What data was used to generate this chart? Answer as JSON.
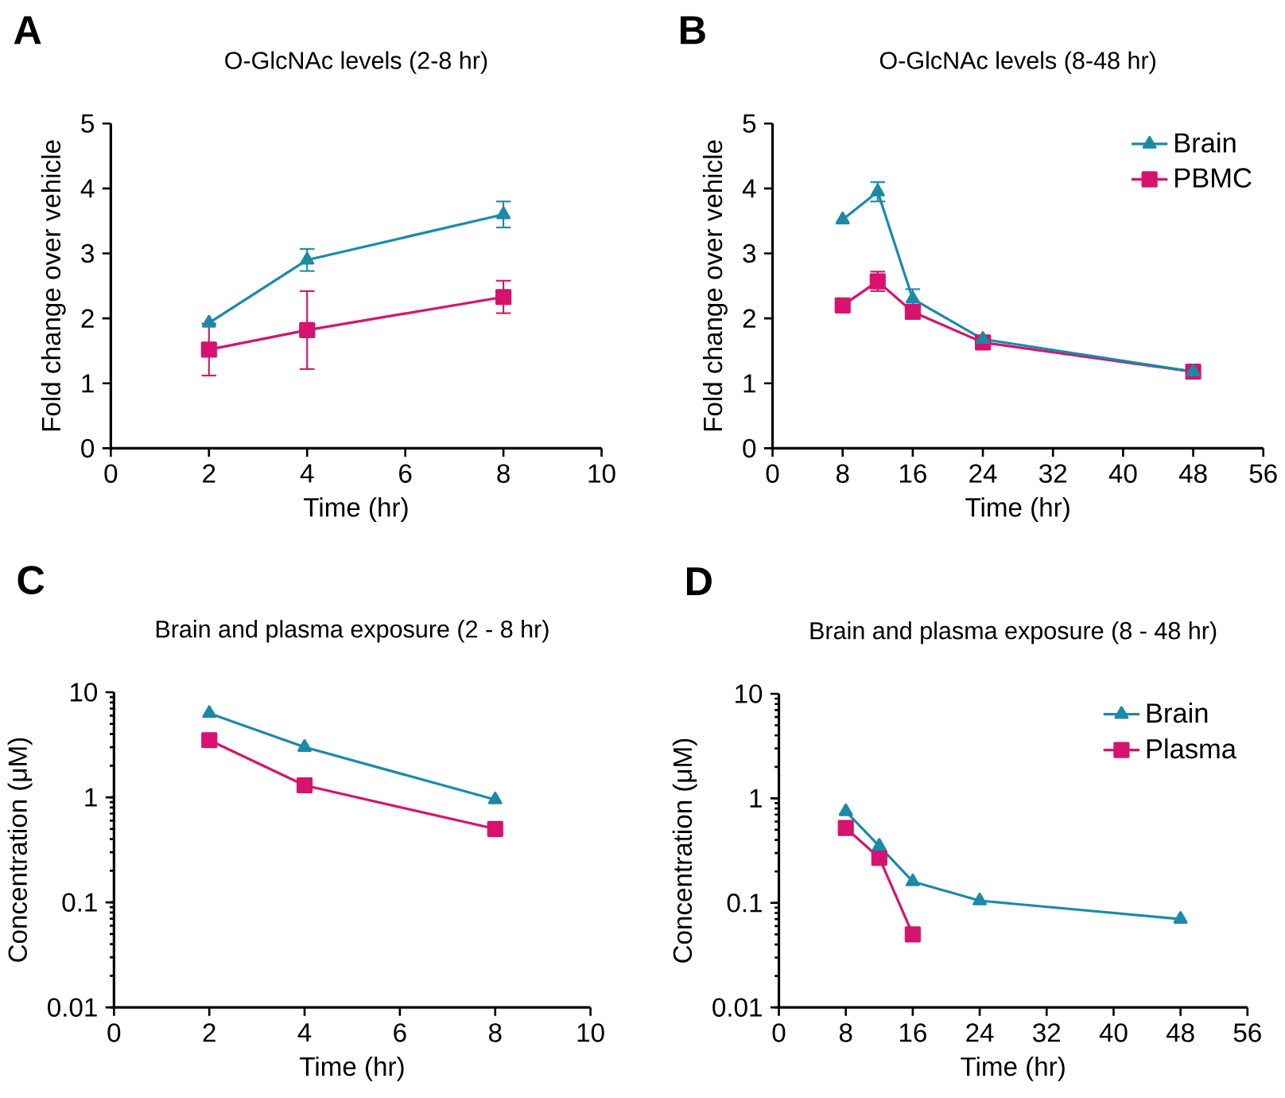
{
  "chart_data": [
    {
      "type": "line",
      "title": "O-GlcNAc levels (2-8 hr)",
      "xlabel": "Time (hr)",
      "ylabel": "Fold change over vehicle",
      "annotations": [
        "A"
      ],
      "x": [
        2,
        4,
        8
      ],
      "xlim": [
        0,
        10
      ],
      "xticks": [
        0,
        2,
        4,
        6,
        8,
        10
      ],
      "ylim": [
        0,
        5
      ],
      "yticks": [
        0,
        1,
        2,
        3,
        4,
        5
      ],
      "series": [
        {
          "color": "#1a8aa8",
          "marker": "triangle",
          "values": [
            1.93,
            2.9,
            3.6
          ],
          "errors": [
            null,
            0.17,
            0.2
          ]
        },
        {
          "color": "#d6136e",
          "marker": "square",
          "values": [
            1.52,
            1.82,
            2.33
          ],
          "errors": [
            0.4,
            0.6,
            0.25
          ]
        }
      ]
    },
    {
      "type": "line",
      "title": "O-GlcNAc levels (8-48 hr)",
      "xlabel": "Time (hr)",
      "ylabel": "Fold change over vehicle",
      "annotations": [
        "B"
      ],
      "x": [
        8,
        12,
        16,
        24,
        48
      ],
      "xlim": [
        0,
        56
      ],
      "xticks": [
        0,
        8,
        16,
        24,
        32,
        40,
        48,
        56
      ],
      "ylim": [
        0,
        5
      ],
      "yticks": [
        0,
        1,
        2,
        3,
        4,
        5
      ],
      "legend": "top right",
      "series": [
        {
          "name": "Brain",
          "color": "#1a8aa8",
          "marker": "triangle",
          "values": [
            3.52,
            3.95,
            2.3,
            1.68,
            1.18
          ],
          "errors": [
            null,
            0.15,
            0.15,
            null,
            null
          ]
        },
        {
          "name": "PBMC",
          "color": "#d6136e",
          "marker": "square",
          "values": [
            2.2,
            2.57,
            2.1,
            1.63,
            1.18
          ],
          "errors": [
            null,
            0.15,
            null,
            null,
            null
          ]
        }
      ]
    },
    {
      "type": "line",
      "title": "Brain and plasma exposure (2 - 8 hr)",
      "xlabel": "Time (hr)",
      "ylabel": "Concentration (μM)",
      "annotations": [
        "C"
      ],
      "log": "y",
      "x": [
        2,
        4,
        8
      ],
      "xlim": [
        0,
        10
      ],
      "xticks": [
        0,
        2,
        4,
        6,
        8,
        10
      ],
      "ylim": [
        0.01,
        10
      ],
      "yticks": [
        0.01,
        0.1,
        1,
        10
      ],
      "series": [
        {
          "color": "#1a8aa8",
          "marker": "triangle",
          "values": [
            6.3,
            3.0,
            0.95
          ]
        },
        {
          "color": "#d6136e",
          "marker": "square",
          "values": [
            3.5,
            1.3,
            0.5
          ]
        }
      ]
    },
    {
      "type": "line",
      "title": "Brain and plasma exposure (8 - 48 hr)",
      "xlabel": "Time (hr)",
      "ylabel": "Concentration (μM)",
      "annotations": [
        "D"
      ],
      "log": "y",
      "x": [
        8,
        12,
        16,
        24,
        48
      ],
      "xlim": [
        0,
        56
      ],
      "xticks": [
        0,
        8,
        16,
        24,
        32,
        40,
        48,
        56
      ],
      "ylim": [
        0.01,
        10
      ],
      "yticks": [
        0.01,
        0.1,
        1,
        10
      ],
      "legend": "top right",
      "series": [
        {
          "name": "Brain",
          "color": "#1a8aa8",
          "marker": "triangle",
          "values": [
            0.75,
            0.35,
            0.16,
            0.105,
            0.07
          ]
        },
        {
          "name": "Plasma",
          "color": "#d6136e",
          "marker": "square",
          "values": [
            0.52,
            0.27,
            0.05,
            null,
            null
          ]
        }
      ]
    }
  ]
}
